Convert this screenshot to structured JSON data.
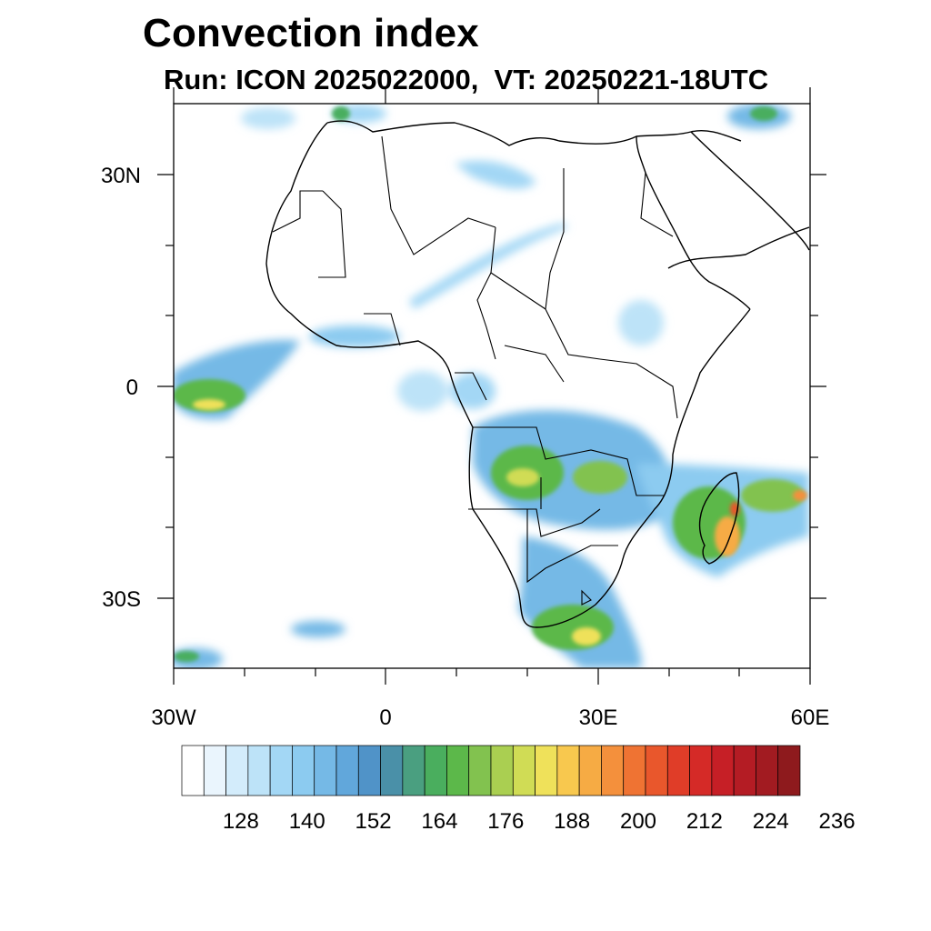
{
  "title": "Convection index",
  "subtitle": "Run: ICON 2025022000,  VT: 20250221-18UTC",
  "map": {
    "lat_labels": [
      "30N",
      "0",
      "30S"
    ],
    "lon_labels": [
      "30W",
      "0",
      "30E",
      "60E"
    ]
  },
  "colorbar": {
    "labels": [
      "128",
      "140",
      "152",
      "164",
      "176",
      "188",
      "200",
      "212",
      "224",
      "236"
    ],
    "colors": [
      "#ffffff",
      "#eaf5fd",
      "#d3ecfb",
      "#bde3f8",
      "#a3d7f5",
      "#8ccbf0",
      "#75b9e6",
      "#61a7db",
      "#5093c8",
      "#4a90a8",
      "#4a9f80",
      "#4aae5e",
      "#5cb84a",
      "#82c24f",
      "#aacf51",
      "#d0dc55",
      "#efe15a",
      "#f8c84e",
      "#f6ab44",
      "#f4903c",
      "#ef7333",
      "#e9572c",
      "#e03d28",
      "#d52a27",
      "#c61f26",
      "#b41c24",
      "#a21b21",
      "#8e1a1d"
    ]
  }
}
